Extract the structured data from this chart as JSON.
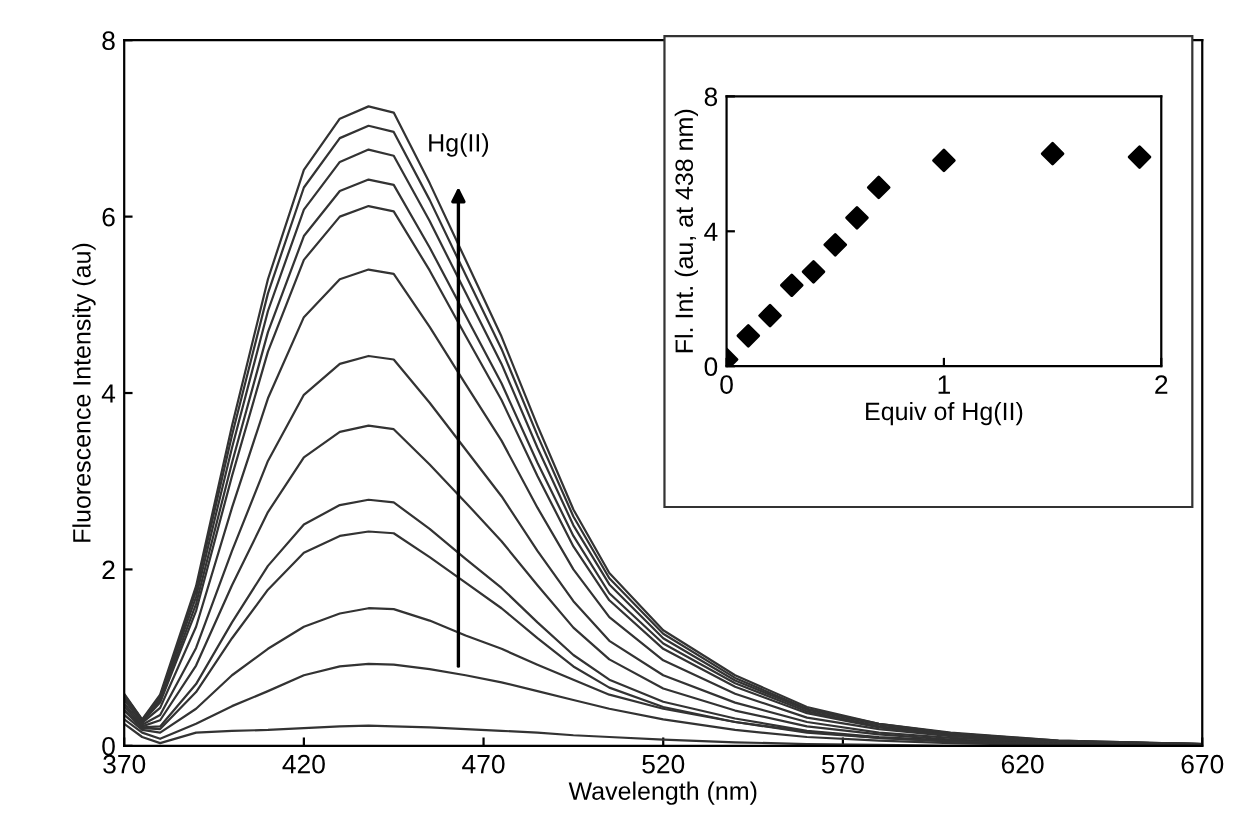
{
  "chart_data": [
    {
      "type": "line",
      "xlabel": "Wavelength (nm)",
      "ylabel": "Fluorescence Intensity (au)",
      "x": [
        370,
        375,
        380,
        390,
        400,
        410,
        420,
        430,
        438,
        445,
        455,
        465,
        475,
        485,
        495,
        505,
        520,
        540,
        560,
        580,
        600,
        630,
        670
      ],
      "xlim": [
        370,
        670
      ],
      "xticks": [
        370,
        420,
        470,
        520,
        570,
        620,
        670
      ],
      "ylim": [
        0,
        8
      ],
      "yticks": [
        0,
        2,
        4,
        6,
        8
      ],
      "grid": false,
      "legend": false,
      "marker": "none",
      "line_style": "solid",
      "annotations": [
        "Hg(II)"
      ],
      "series": [
        {
          "color": "#333333",
          "values": [
            0.59,
            0.3,
            0.58,
            1.81,
            3.63,
            5.29,
            6.53,
            7.11,
            7.25,
            7.18,
            6.38,
            5.51,
            4.64,
            3.63,
            2.68,
            1.96,
            1.31,
            0.8,
            0.44,
            0.25,
            0.15,
            0.06,
            0.02
          ]
        },
        {
          "color": "#333333",
          "values": [
            0.58,
            0.29,
            0.56,
            1.76,
            3.52,
            5.13,
            6.33,
            6.89,
            7.03,
            6.96,
            6.19,
            5.34,
            4.5,
            3.52,
            2.6,
            1.9,
            1.27,
            0.77,
            0.42,
            0.25,
            0.14,
            0.06,
            0.02
          ]
        },
        {
          "color": "#333333",
          "values": [
            0.57,
            0.29,
            0.54,
            1.69,
            3.38,
            4.93,
            6.08,
            6.62,
            6.76,
            6.69,
            5.95,
            5.14,
            4.33,
            3.38,
            2.5,
            1.83,
            1.22,
            0.74,
            0.41,
            0.24,
            0.14,
            0.05,
            0.02
          ]
        },
        {
          "color": "#333333",
          "values": [
            0.56,
            0.28,
            0.51,
            1.61,
            3.21,
            4.69,
            5.78,
            6.29,
            6.42,
            6.36,
            5.65,
            4.88,
            4.11,
            3.21,
            2.38,
            1.73,
            1.16,
            0.71,
            0.39,
            0.22,
            0.13,
            0.05,
            0.02
          ]
        },
        {
          "color": "#333333",
          "values": [
            0.54,
            0.27,
            0.49,
            1.53,
            3.06,
            4.47,
            5.51,
            6.0,
            6.12,
            6.06,
            5.39,
            4.65,
            3.92,
            3.06,
            2.26,
            1.65,
            1.1,
            0.67,
            0.37,
            0.21,
            0.12,
            0.05,
            0.02
          ]
        },
        {
          "color": "#333333",
          "values": [
            0.52,
            0.26,
            0.43,
            1.35,
            2.7,
            3.94,
            4.86,
            5.29,
            5.4,
            5.35,
            4.75,
            4.1,
            3.46,
            2.7,
            2.0,
            1.46,
            0.97,
            0.59,
            0.32,
            0.19,
            0.11,
            0.04,
            0.02
          ]
        },
        {
          "color": "#333333",
          "values": [
            0.48,
            0.24,
            0.35,
            1.11,
            2.21,
            3.23,
            3.98,
            4.33,
            4.42,
            4.38,
            3.89,
            3.36,
            2.83,
            2.21,
            1.64,
            1.19,
            0.8,
            0.49,
            0.27,
            0.15,
            0.09,
            0.04,
            0.01
          ]
        },
        {
          "color": "#333333",
          "values": [
            0.45,
            0.22,
            0.29,
            0.91,
            1.82,
            2.65,
            3.27,
            3.56,
            3.63,
            3.59,
            3.19,
            2.76,
            2.32,
            1.82,
            1.34,
            0.98,
            0.65,
            0.4,
            0.22,
            0.13,
            0.07,
            0.03,
            0.01
          ]
        },
        {
          "color": "#333333",
          "values": [
            0.41,
            0.21,
            0.22,
            0.7,
            1.4,
            2.04,
            2.51,
            2.73,
            2.79,
            2.76,
            2.46,
            2.12,
            1.79,
            1.4,
            1.03,
            0.75,
            0.5,
            0.31,
            0.17,
            0.1,
            0.06,
            0.02,
            0.01
          ]
        },
        {
          "color": "#333333",
          "values": [
            0.4,
            0.2,
            0.19,
            0.61,
            1.22,
            1.77,
            2.19,
            2.38,
            2.43,
            2.41,
            2.14,
            1.85,
            1.56,
            1.22,
            0.9,
            0.66,
            0.44,
            0.27,
            0.15,
            0.09,
            0.05,
            0.02,
            0.01
          ]
        },
        {
          "color": "#333333",
          "values": [
            0.35,
            0.18,
            0.15,
            0.42,
            0.8,
            1.1,
            1.35,
            1.5,
            1.56,
            1.55,
            1.42,
            1.25,
            1.1,
            0.92,
            0.75,
            0.58,
            0.42,
            0.27,
            0.16,
            0.09,
            0.05,
            0.02,
            0.01
          ]
        },
        {
          "color": "#333333",
          "values": [
            0.3,
            0.15,
            0.08,
            0.25,
            0.45,
            0.62,
            0.8,
            0.9,
            0.93,
            0.92,
            0.87,
            0.8,
            0.72,
            0.62,
            0.52,
            0.42,
            0.3,
            0.18,
            0.1,
            0.06,
            0.03,
            0.01,
            0
          ]
        },
        {
          "color": "#333333",
          "values": [
            0.25,
            0.1,
            0.03,
            0.15,
            0.17,
            0.18,
            0.2,
            0.22,
            0.23,
            0.22,
            0.21,
            0.19,
            0.17,
            0.15,
            0.12,
            0.1,
            0.07,
            0.04,
            0.02,
            0.01,
            0,
            0,
            0
          ]
        }
      ]
    },
    {
      "type": "scatter",
      "xlabel": "Equiv of Hg(II)",
      "ylabel": "Fl. Int. (au, at 438 nm)",
      "x": [
        0,
        0.1,
        0.2,
        0.3,
        0.4,
        0.5,
        0.6,
        0.7,
        1.0,
        1.5,
        1.9
      ],
      "xlim": [
        0,
        2
      ],
      "xticks": [
        0,
        1,
        2
      ],
      "ylim": [
        0,
        8
      ],
      "yticks": [
        0,
        4,
        8
      ],
      "grid": false,
      "legend": false,
      "marker": "diamond",
      "series": [
        {
          "color": "#000000",
          "values": [
            0.2,
            0.9,
            1.5,
            2.4,
            2.8,
            3.6,
            4.4,
            5.3,
            6.1,
            6.3,
            6.2
          ]
        }
      ]
    }
  ]
}
